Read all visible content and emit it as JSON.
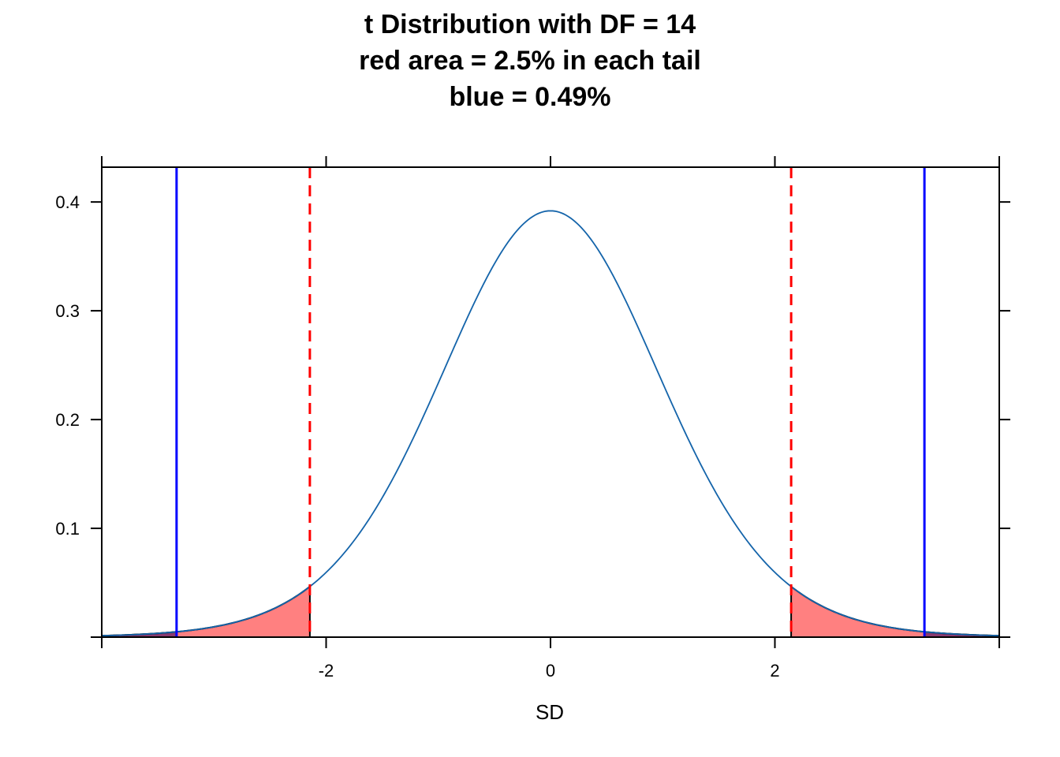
{
  "chart_data": {
    "type": "area",
    "title_lines": [
      "t Distribution with DF = 14",
      "red area = 2.5% in each tail",
      "blue = 0.49%"
    ],
    "xlabel": "SD",
    "ylabel": "",
    "df": 14,
    "xlim": [
      -4,
      4
    ],
    "ylim": [
      0,
      0.432
    ],
    "x_ticks": [
      -2,
      0,
      2
    ],
    "x_tick_labels": [
      "-2",
      "0",
      "2"
    ],
    "y_ticks": [
      0.1,
      0.2,
      0.3,
      0.4
    ],
    "y_tick_labels": [
      "0.1",
      "0.2",
      "0.3",
      "0.4"
    ],
    "red_critical_t": 2.145,
    "blue_critical_t": 3.333,
    "red_tail_percent": 2.5,
    "blue_percent": 0.49,
    "colors": {
      "curve": "#1464AA",
      "red_fill": "#FF8080",
      "red_line": "#FF0000",
      "blue_line": "#0000FF",
      "blue_fill": "#8A3A70"
    }
  }
}
